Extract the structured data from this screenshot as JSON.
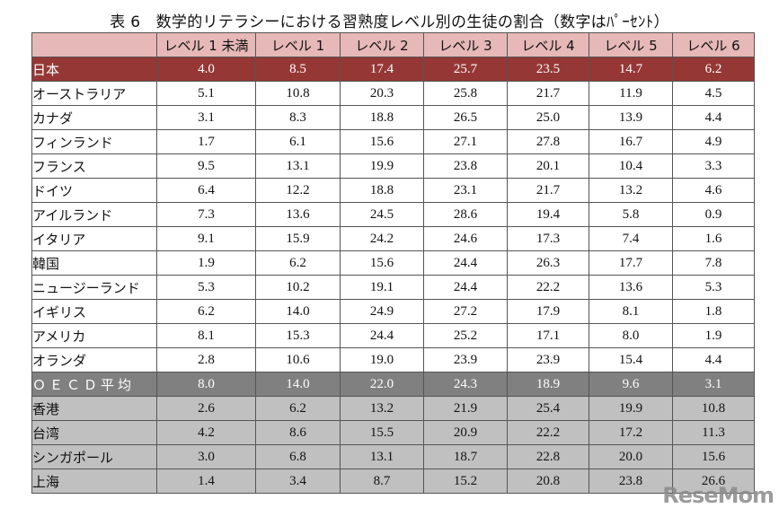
{
  "title": "表 6　数学的リテラシーにおける習熟度レベル別の生徒の割合（数字はﾊﾟｰｾﾝﾄ）",
  "watermark": "ReseMom",
  "colors": {
    "header_bg": "#e6b8b7",
    "japan_bg": "#953735",
    "oecd_bg": "#808080",
    "asia_bg": "#c0c0c0"
  },
  "columns": [
    "",
    "レベル 1 未満",
    "レベル 1",
    "レベル 2",
    "レベル 3",
    "レベル 4",
    "レベル 5",
    "レベル 6"
  ],
  "rows": [
    {
      "name": "日本",
      "group": "japan",
      "values": [
        "4.0",
        "8.5",
        "17.4",
        "25.7",
        "23.5",
        "14.7",
        "6.2"
      ]
    },
    {
      "name": "オーストラリア",
      "group": "normal",
      "values": [
        "5.1",
        "10.8",
        "20.3",
        "25.8",
        "21.7",
        "11.9",
        "4.5"
      ]
    },
    {
      "name": "カナダ",
      "group": "normal",
      "values": [
        "3.1",
        "8.3",
        "18.8",
        "26.5",
        "25.0",
        "13.9",
        "4.4"
      ]
    },
    {
      "name": "フィンランド",
      "group": "normal",
      "values": [
        "1.7",
        "6.1",
        "15.6",
        "27.1",
        "27.8",
        "16.7",
        "4.9"
      ]
    },
    {
      "name": "フランス",
      "group": "normal",
      "values": [
        "9.5",
        "13.1",
        "19.9",
        "23.8",
        "20.1",
        "10.4",
        "3.3"
      ]
    },
    {
      "name": "ドイツ",
      "group": "normal",
      "values": [
        "6.4",
        "12.2",
        "18.8",
        "23.1",
        "21.7",
        "13.2",
        "4.6"
      ]
    },
    {
      "name": "アイルランド",
      "group": "normal",
      "values": [
        "7.3",
        "13.6",
        "24.5",
        "28.6",
        "19.4",
        "5.8",
        "0.9"
      ]
    },
    {
      "name": "イタリア",
      "group": "normal",
      "values": [
        "9.1",
        "15.9",
        "24.2",
        "24.6",
        "17.3",
        "7.4",
        "1.6"
      ]
    },
    {
      "name": "韓国",
      "group": "normal",
      "values": [
        "1.9",
        "6.2",
        "15.6",
        "24.4",
        "26.3",
        "17.7",
        "7.8"
      ]
    },
    {
      "name": "ニュージーランド",
      "group": "normal",
      "values": [
        "5.3",
        "10.2",
        "19.1",
        "24.4",
        "22.2",
        "13.6",
        "5.3"
      ]
    },
    {
      "name": "イギリス",
      "group": "normal",
      "values": [
        "6.2",
        "14.0",
        "24.9",
        "27.2",
        "17.9",
        "8.1",
        "1.8"
      ]
    },
    {
      "name": "アメリカ",
      "group": "normal",
      "values": [
        "8.1",
        "15.3",
        "24.4",
        "25.2",
        "17.1",
        "8.0",
        "1.9"
      ]
    },
    {
      "name": "オランダ",
      "group": "normal",
      "values": [
        "2.8",
        "10.6",
        "19.0",
        "23.9",
        "23.9",
        "15.4",
        "4.4"
      ]
    },
    {
      "name": "ＯＥＣＤ平均",
      "group": "oecd",
      "values": [
        "8.0",
        "14.0",
        "22.0",
        "24.3",
        "18.9",
        "9.6",
        "3.1"
      ]
    },
    {
      "name": "香港",
      "group": "asia",
      "values": [
        "2.6",
        "6.2",
        "13.2",
        "21.9",
        "25.4",
        "19.9",
        "10.8"
      ]
    },
    {
      "name": "台湾",
      "group": "asia",
      "values": [
        "4.2",
        "8.6",
        "15.5",
        "20.9",
        "22.2",
        "17.2",
        "11.3"
      ]
    },
    {
      "name": "シンガポール",
      "group": "asia",
      "values": [
        "3.0",
        "6.8",
        "13.1",
        "18.7",
        "22.8",
        "20.0",
        "15.6"
      ]
    },
    {
      "name": "上海",
      "group": "asia",
      "values": [
        "1.4",
        "3.4",
        "8.7",
        "15.2",
        "20.8",
        "23.8",
        "26.6"
      ]
    }
  ]
}
